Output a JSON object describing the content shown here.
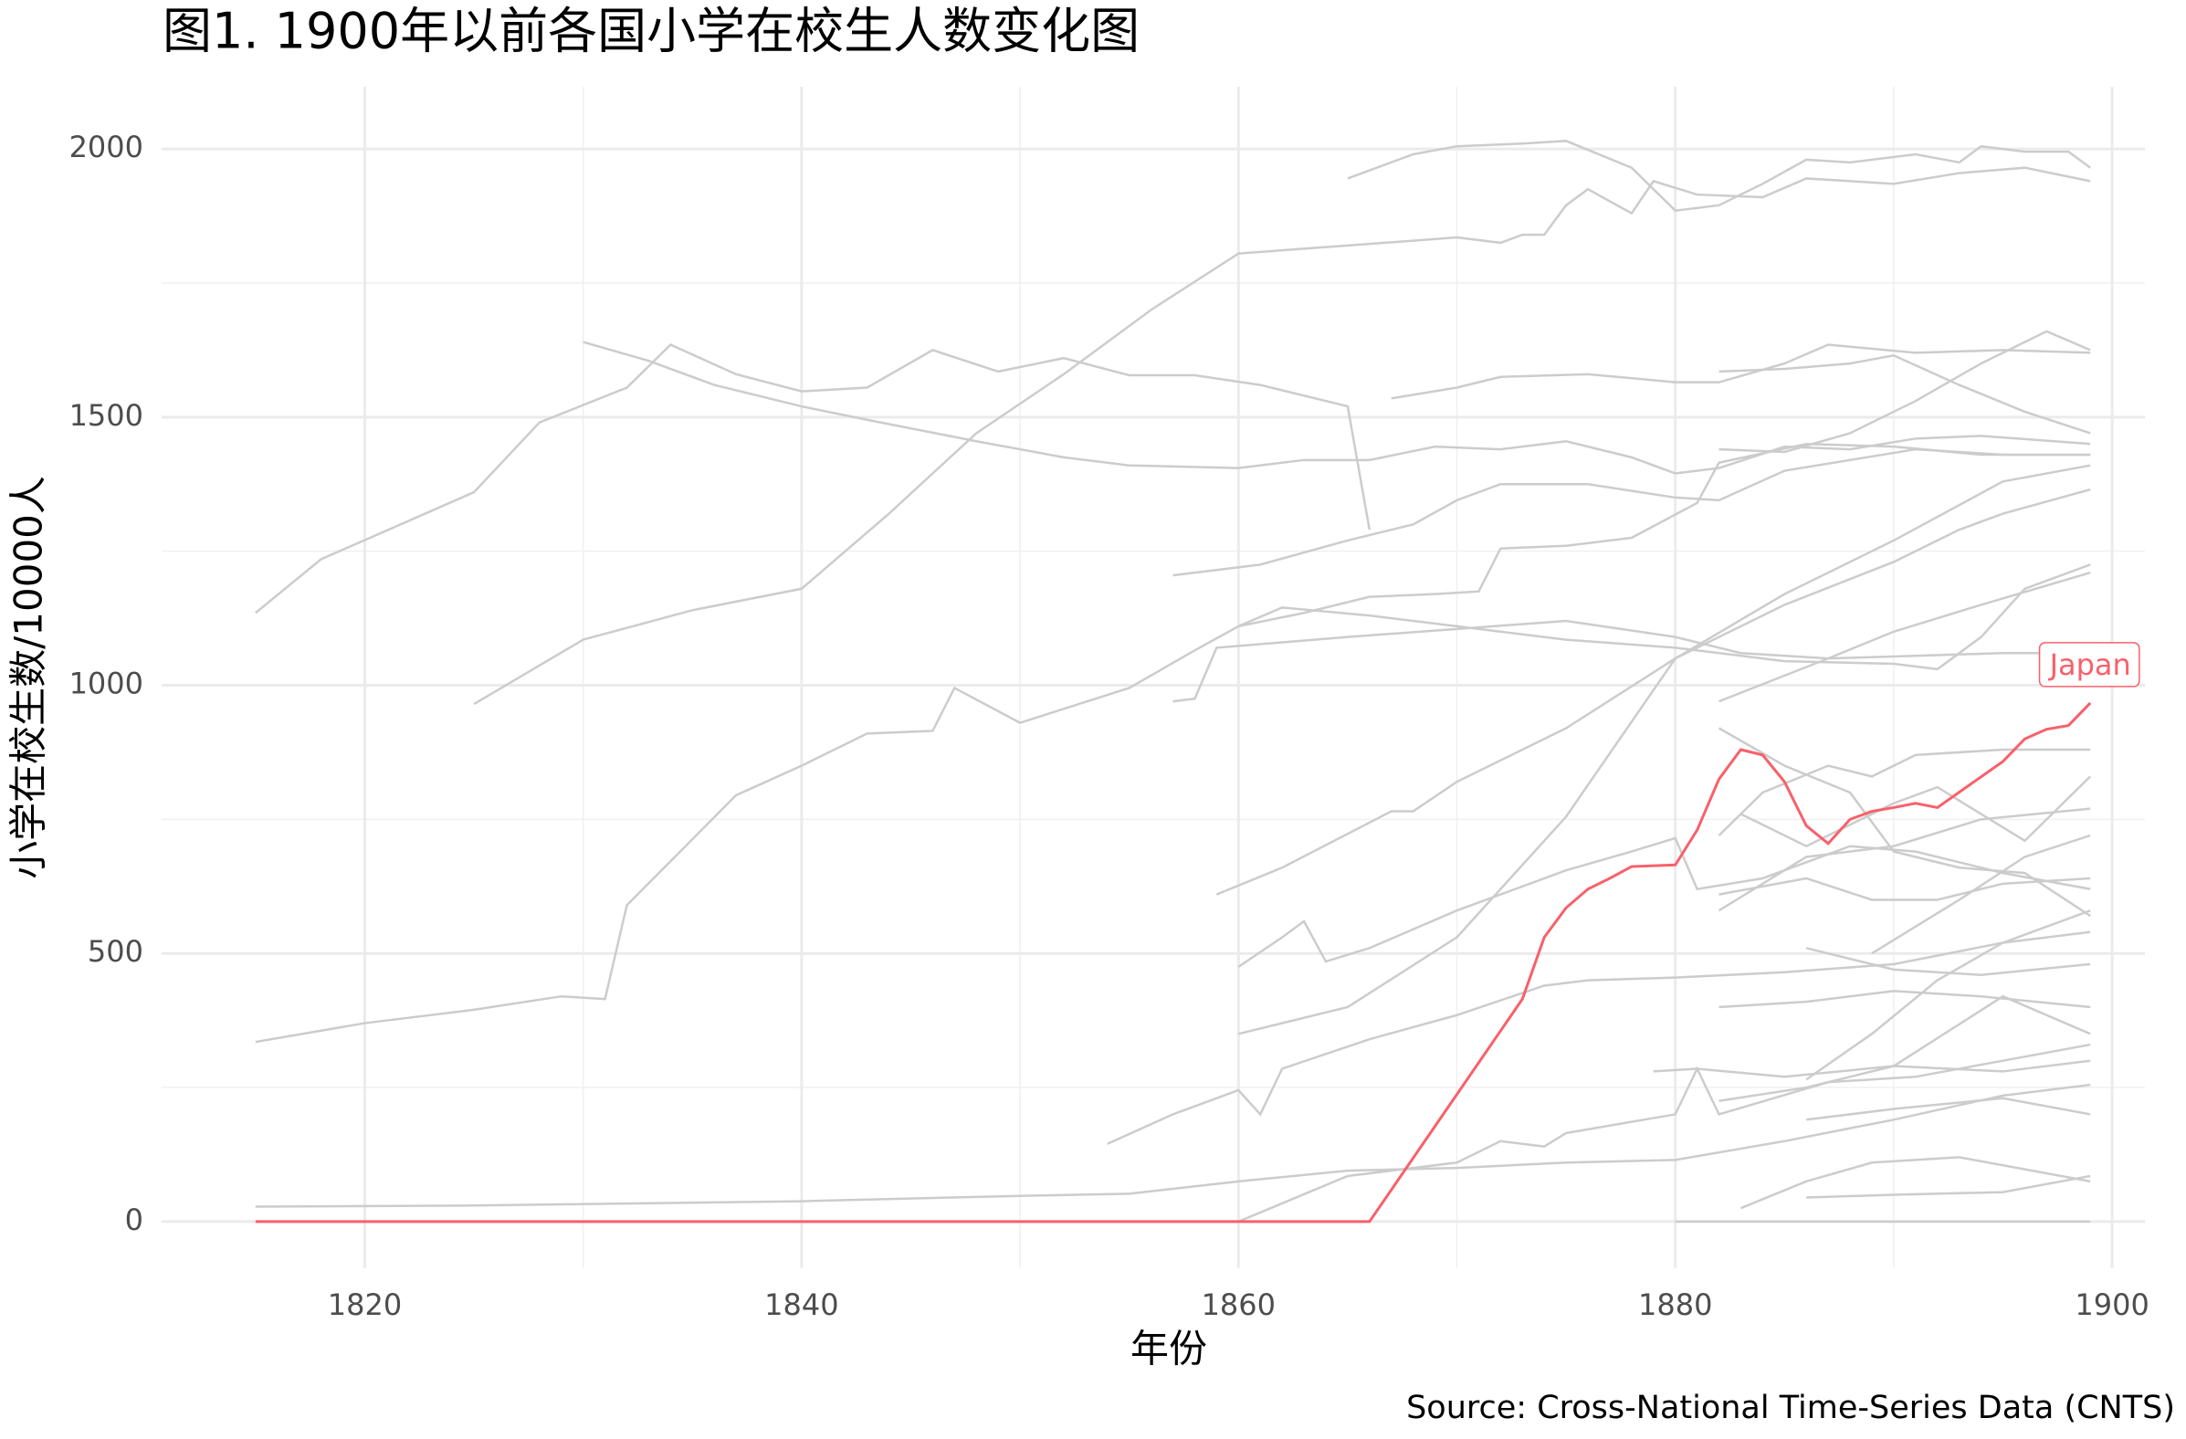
{
  "chart_data": {
    "type": "line",
    "title": "图1. 1900年以前各国小学在校生人数变化图",
    "x_label": "年份",
    "y_label": "小学在校生数/10000人",
    "caption": "Source: Cross-National Time-Series Data (CNTS)",
    "xlim": [
      1810.7,
      1901.5
    ],
    "ylim": [
      -87,
      2116
    ],
    "xticks": [
      1820,
      1840,
      1860,
      1880,
      1900
    ],
    "yticks": [
      0,
      500,
      1000,
      1500,
      2000
    ],
    "grid": true,
    "series": [
      {
        "color": "#cccccc",
        "x": [
          1865,
          1868,
          1870,
          1873,
          1875,
          1878,
          1880,
          1882,
          1884,
          1886,
          1888,
          1891,
          1893,
          1894,
          1896,
          1898,
          1899
        ],
        "values": [
          1945,
          1990,
          2005,
          2010,
          2015,
          1965,
          1885,
          1895,
          1935,
          1980,
          1975,
          1990,
          1975,
          2005,
          1995,
          1995,
          1965
        ]
      },
      {
        "color": "#cccccc",
        "x": [
          1815,
          1818,
          1825,
          1828,
          1832,
          1834,
          1837,
          1840,
          1843,
          1846,
          1849,
          1852,
          1855,
          1858,
          1861,
          1865,
          1866
        ],
        "values": [
          1135,
          1235,
          1360,
          1490,
          1555,
          1635,
          1580,
          1548,
          1555,
          1625,
          1585,
          1610,
          1578,
          1578,
          1560,
          1520,
          1290
        ]
      },
      {
        "color": "#cccccc",
        "x": [
          1830,
          1833,
          1836,
          1840,
          1843,
          1848,
          1852,
          1855,
          1860,
          1863,
          1866,
          1869,
          1872,
          1875,
          1878,
          1880,
          1882,
          1885,
          1888,
          1891,
          1894,
          1899
        ],
        "values": [
          1640,
          1605,
          1560,
          1520,
          1495,
          1455,
          1425,
          1410,
          1405,
          1420,
          1420,
          1445,
          1440,
          1455,
          1425,
          1395,
          1405,
          1445,
          1440,
          1460,
          1465,
          1450
        ]
      },
      {
        "color": "#cccccc",
        "x": [
          1825,
          1830,
          1835,
          1840,
          1844,
          1848,
          1852,
          1856,
          1860,
          1865,
          1870,
          1872,
          1873,
          1874,
          1875,
          1876,
          1878,
          1879,
          1881,
          1884,
          1886,
          1890,
          1893,
          1896,
          1899
        ],
        "values": [
          965,
          1085,
          1140,
          1180,
          1320,
          1470,
          1580,
          1700,
          1805,
          1820,
          1835,
          1825,
          1840,
          1840,
          1895,
          1925,
          1880,
          1940,
          1915,
          1910,
          1945,
          1935,
          1955,
          1965,
          1940
        ]
      },
      {
        "color": "#cccccc",
        "x": [
          1815,
          1820,
          1825,
          1829,
          1831,
          1832,
          1837,
          1840,
          1843,
          1846,
          1847,
          1850,
          1855,
          1858,
          1860,
          1863,
          1866,
          1869,
          1871,
          1872,
          1875,
          1878,
          1881,
          1882,
          1886,
          1890,
          1894,
          1899
        ],
        "values": [
          335,
          370,
          395,
          420,
          415,
          590,
          795,
          850,
          910,
          915,
          995,
          930,
          995,
          1065,
          1110,
          1135,
          1165,
          1170,
          1175,
          1255,
          1260,
          1275,
          1340,
          1415,
          1450,
          1445,
          1430,
          1430
        ]
      },
      {
        "color": "#cccccc",
        "x": [
          1815,
          1825,
          1840,
          1850,
          1855,
          1860,
          1865,
          1870,
          1875,
          1880,
          1885,
          1890,
          1895,
          1899
        ],
        "values": [
          28,
          30,
          38,
          48,
          52,
          75,
          95,
          100,
          110,
          115,
          150,
          190,
          235,
          255
        ]
      },
      {
        "color": "#cccccc",
        "x": [
          1859,
          1862,
          1867,
          1868,
          1870,
          1875,
          1880,
          1885,
          1890,
          1893,
          1895,
          1899
        ],
        "values": [
          610,
          660,
          765,
          765,
          820,
          920,
          1050,
          1150,
          1230,
          1290,
          1320,
          1365
        ]
      },
      {
        "color": "#cccccc",
        "x": [
          1857,
          1861,
          1865,
          1868,
          1870,
          1872,
          1876,
          1880,
          1882,
          1885,
          1888,
          1891,
          1895,
          1899
        ],
        "values": [
          1205,
          1225,
          1270,
          1300,
          1345,
          1375,
          1375,
          1350,
          1345,
          1400,
          1420,
          1440,
          1430,
          1430
        ]
      },
      {
        "color": "#cccccc",
        "x": [
          1857,
          1858,
          1859,
          1865,
          1870,
          1875,
          1880,
          1883,
          1887,
          1891,
          1895,
          1899
        ],
        "values": [
          970,
          975,
          1070,
          1090,
          1105,
          1120,
          1090,
          1060,
          1050,
          1055,
          1060,
          1060
        ]
      },
      {
        "color": "#cccccc",
        "x": [
          1860,
          1862,
          1866,
          1870,
          1875,
          1880,
          1885,
          1890,
          1892,
          1894,
          1896,
          1899
        ],
        "values": [
          1110,
          1145,
          1130,
          1110,
          1085,
          1070,
          1045,
          1040,
          1030,
          1090,
          1180,
          1225
        ]
      },
      {
        "color": "#cccccc",
        "x": [
          1867,
          1870,
          1872,
          1876,
          1880,
          1882,
          1885,
          1887,
          1891,
          1895,
          1899
        ],
        "values": [
          1535,
          1555,
          1575,
          1580,
          1565,
          1565,
          1600,
          1635,
          1620,
          1625,
          1620
        ]
      },
      {
        "color": "#cccccc",
        "x": [
          1882,
          1885,
          1888,
          1890,
          1893,
          1896,
          1899
        ],
        "values": [
          1585,
          1590,
          1600,
          1615,
          1560,
          1510,
          1470
        ]
      },
      {
        "color": "#cccccc",
        "x": [
          1882,
          1885,
          1888,
          1891,
          1894,
          1897,
          1899
        ],
        "values": [
          1440,
          1435,
          1470,
          1530,
          1600,
          1660,
          1625
        ]
      },
      {
        "color": "#cccccc",
        "x": [
          1854,
          1857,
          1860,
          1861,
          1862,
          1866,
          1870,
          1874,
          1876,
          1880,
          1885,
          1890,
          1895,
          1899
        ],
        "values": [
          145,
          200,
          245,
          200,
          285,
          340,
          385,
          440,
          450,
          455,
          465,
          480,
          520,
          540
        ]
      },
      {
        "color": "#cccccc",
        "x": [
          1860,
          1862,
          1863,
          1864,
          1866,
          1870,
          1875,
          1878,
          1880,
          1881,
          1884,
          1888,
          1891,
          1895,
          1899
        ],
        "values": [
          475,
          530,
          560,
          485,
          510,
          580,
          655,
          690,
          715,
          620,
          640,
          700,
          690,
          650,
          620
        ]
      },
      {
        "color": "#cccccc",
        "x": [
          1860,
          1865,
          1870,
          1875,
          1880,
          1885,
          1890,
          1895,
          1899
        ],
        "values": [
          350,
          400,
          530,
          755,
          1050,
          1170,
          1270,
          1380,
          1410
        ]
      },
      {
        "color": "#cccccc",
        "x": [
          1860,
          1865,
          1870,
          1872,
          1874,
          1875,
          1880,
          1881,
          1882,
          1887,
          1891,
          1895,
          1899
        ],
        "values": [
          0,
          85,
          110,
          150,
          140,
          165,
          200,
          285,
          200,
          260,
          270,
          300,
          330
        ]
      },
      {
        "color": "#cccccc",
        "x": [
          1882,
          1885,
          1888,
          1890,
          1893,
          1896,
          1899
        ],
        "values": [
          920,
          850,
          800,
          690,
          660,
          650,
          570
        ]
      },
      {
        "color": "#cccccc",
        "x": [
          1882,
          1887,
          1890,
          1894,
          1899
        ],
        "values": [
          970,
          1050,
          1100,
          1150,
          1210
        ]
      },
      {
        "color": "#cccccc",
        "x": [
          1882,
          1884,
          1887,
          1889,
          1891,
          1895,
          1899
        ],
        "values": [
          720,
          800,
          850,
          830,
          870,
          880,
          880
        ]
      },
      {
        "color": "#cccccc",
        "x": [
          1883,
          1886,
          1890,
          1892,
          1896,
          1899
        ],
        "values": [
          760,
          700,
          780,
          810,
          710,
          830
        ]
      },
      {
        "color": "#cccccc",
        "x": [
          1882,
          1886,
          1890,
          1894,
          1899
        ],
        "values": [
          580,
          680,
          700,
          750,
          770
        ]
      },
      {
        "color": "#cccccc",
        "x": [
          1882,
          1886,
          1889,
          1892,
          1895,
          1899
        ],
        "values": [
          610,
          640,
          600,
          600,
          630,
          640
        ]
      },
      {
        "color": "#cccccc",
        "x": [
          1882,
          1886,
          1890,
          1894,
          1899
        ],
        "values": [
          400,
          410,
          430,
          420,
          400
        ]
      },
      {
        "color": "#cccccc",
        "x": [
          1879,
          1881,
          1885,
          1890,
          1895,
          1899
        ],
        "values": [
          280,
          285,
          270,
          290,
          280,
          300
        ]
      },
      {
        "color": "#cccccc",
        "x": [
          1883,
          1886,
          1889,
          1893,
          1899
        ],
        "values": [
          25,
          75,
          110,
          120,
          75
        ]
      },
      {
        "color": "#cccccc",
        "x": [
          1886,
          1890,
          1895,
          1899
        ],
        "values": [
          45,
          50,
          55,
          85
        ]
      },
      {
        "color": "#cccccc",
        "x": [
          1886,
          1890,
          1895,
          1899
        ],
        "values": [
          190,
          210,
          230,
          200
        ]
      },
      {
        "color": "#cccccc",
        "x": [
          1886,
          1890,
          1894,
          1899
        ],
        "values": [
          510,
          470,
          460,
          480
        ]
      },
      {
        "color": "#cccccc",
        "x": [
          1886,
          1889,
          1892,
          1895,
          1899
        ],
        "values": [
          265,
          350,
          450,
          520,
          580
        ]
      },
      {
        "color": "#cccccc",
        "x": [
          1882,
          1886,
          1890,
          1895,
          1899
        ],
        "values": [
          225,
          250,
          290,
          420,
          350
        ]
      },
      {
        "color": "#cccccc",
        "x": [
          1889,
          1893,
          1896,
          1899
        ],
        "values": [
          500,
          600,
          680,
          720
        ]
      },
      {
        "color": "#cccccc",
        "x": [
          1880,
          1899
        ],
        "values": [
          0,
          0
        ]
      },
      {
        "name": "Japan",
        "color": "#f8606a",
        "x": [
          1815,
          1866,
          1873,
          1874,
          1875,
          1876,
          1877,
          1878,
          1880,
          1881,
          1882,
          1883,
          1884,
          1885,
          1886,
          1887,
          1888,
          1889,
          1890,
          1891,
          1892,
          1895,
          1896,
          1897,
          1898,
          1899
        ],
        "values": [
          0,
          0,
          415,
          530,
          585,
          620,
          640,
          662,
          665,
          730,
          825,
          880,
          870,
          820,
          738,
          705,
          750,
          765,
          772,
          780,
          772,
          858,
          900,
          918,
          925,
          967
        ],
        "label": true
      }
    ]
  }
}
